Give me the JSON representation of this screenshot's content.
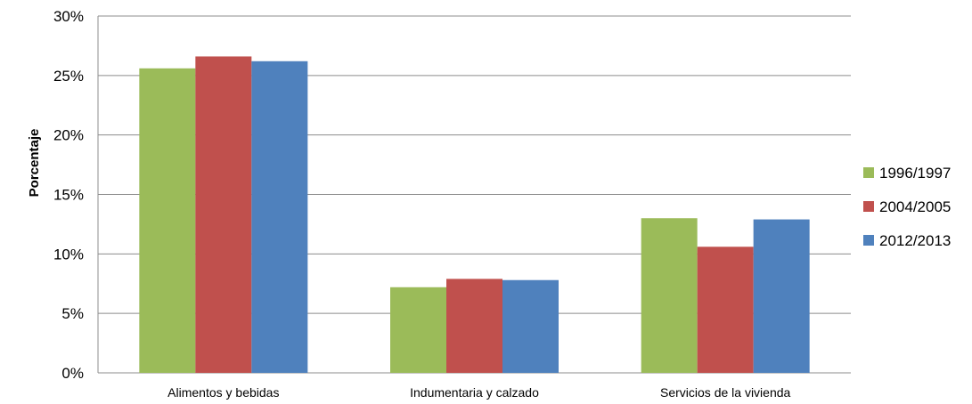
{
  "chart_data": {
    "type": "bar",
    "title": "",
    "xlabel": "",
    "ylabel": "Porcentaje",
    "ylim": [
      0,
      30
    ],
    "yticks": [
      "0%",
      "5%",
      "10%",
      "15%",
      "20%",
      "25%",
      "30%"
    ],
    "ytick_values": [
      0,
      5,
      10,
      15,
      20,
      25,
      30
    ],
    "categories": [
      "Alimentos y bebidas",
      "Indumentaria y calzado",
      "Servicios de la vivienda"
    ],
    "series": [
      {
        "name": "1996/1997",
        "color": "#9BBB59",
        "values": [
          25.6,
          7.2,
          13.0
        ]
      },
      {
        "name": "2004/2005",
        "color": "#C0504D",
        "values": [
          26.6,
          7.9,
          10.6
        ]
      },
      {
        "name": "2012/2013",
        "color": "#4F81BD",
        "values": [
          26.2,
          7.8,
          12.9
        ]
      }
    ],
    "grid": true,
    "legend_position": "right"
  }
}
